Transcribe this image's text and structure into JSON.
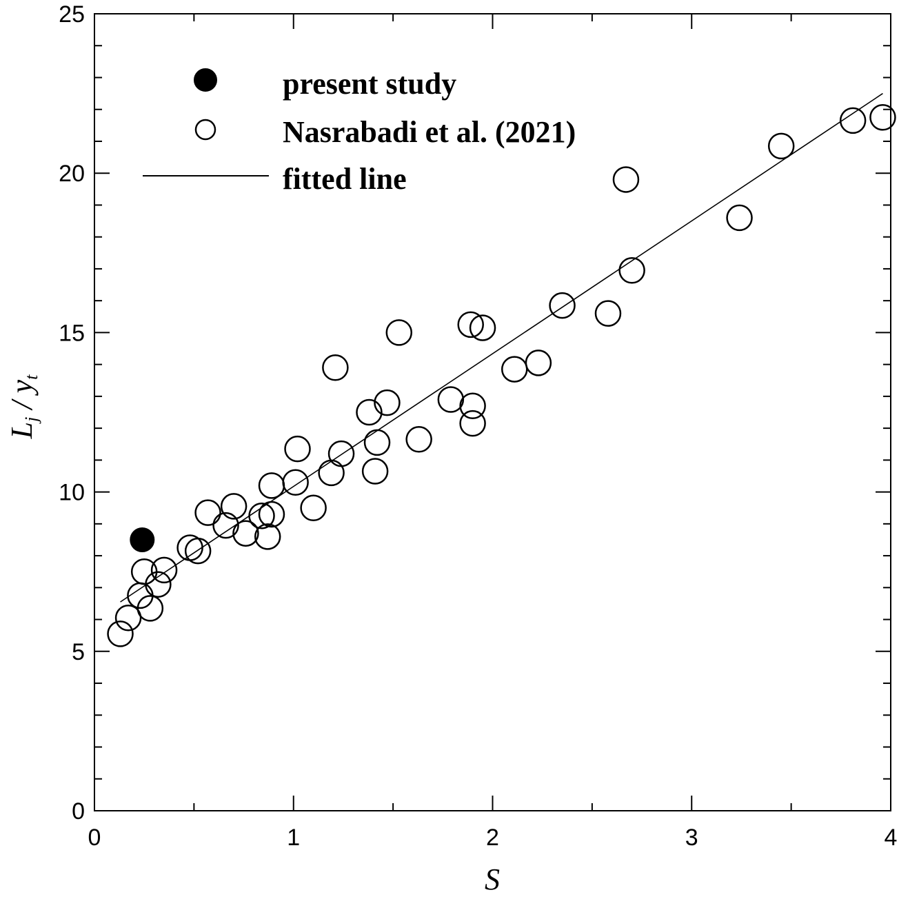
{
  "chart_data": {
    "type": "scatter",
    "xlabel": "S",
    "ylabel": {
      "main": "L",
      "main_sub": "j",
      "separator": " / ",
      "denom": "y",
      "denom_sub": "t"
    },
    "xlim": [
      0,
      4
    ],
    "ylim": [
      0,
      25
    ],
    "x_ticks": [
      "0",
      "1",
      "2",
      "3",
      "4"
    ],
    "y_ticks": [
      "0",
      "5",
      "10",
      "15",
      "20",
      "25"
    ],
    "grid": false,
    "legend_position": "top-left",
    "legend": [
      "present study",
      "Nasrabadi et al. (2021)",
      "fitted line"
    ],
    "series": [
      {
        "name": "present study",
        "marker": "filled-circle",
        "points": [
          [
            0.24,
            8.5
          ]
        ]
      },
      {
        "name": "Nasrabadi et al. (2021)",
        "marker": "open-circle",
        "points": [
          [
            0.13,
            5.55
          ],
          [
            0.17,
            6.05
          ],
          [
            0.23,
            6.75
          ],
          [
            0.25,
            7.5
          ],
          [
            0.28,
            6.35
          ],
          [
            0.32,
            7.1
          ],
          [
            0.35,
            7.55
          ],
          [
            0.48,
            8.25
          ],
          [
            0.52,
            8.15
          ],
          [
            0.57,
            9.35
          ],
          [
            0.66,
            8.95
          ],
          [
            0.7,
            9.55
          ],
          [
            0.76,
            8.7
          ],
          [
            0.84,
            9.25
          ],
          [
            0.87,
            8.6
          ],
          [
            0.89,
            9.3
          ],
          [
            0.89,
            10.2
          ],
          [
            1.01,
            10.3
          ],
          [
            1.02,
            11.35
          ],
          [
            1.1,
            9.5
          ],
          [
            1.19,
            10.6
          ],
          [
            1.21,
            13.9
          ],
          [
            1.24,
            11.2
          ],
          [
            1.38,
            12.5
          ],
          [
            1.41,
            10.65
          ],
          [
            1.42,
            11.55
          ],
          [
            1.47,
            12.8
          ],
          [
            1.53,
            15.0
          ],
          [
            1.63,
            11.65
          ],
          [
            1.79,
            12.9
          ],
          [
            1.89,
            15.25
          ],
          [
            1.9,
            12.7
          ],
          [
            1.9,
            12.15
          ],
          [
            1.95,
            15.15
          ],
          [
            2.11,
            13.85
          ],
          [
            2.23,
            14.05
          ],
          [
            2.35,
            15.85
          ],
          [
            2.58,
            15.6
          ],
          [
            2.67,
            19.8
          ],
          [
            2.7,
            16.95
          ],
          [
            3.24,
            18.6
          ],
          [
            3.45,
            20.85
          ],
          [
            3.81,
            21.65
          ],
          [
            3.96,
            21.75
          ]
        ]
      },
      {
        "name": "fitted line",
        "type": "line",
        "points": [
          [
            0.13,
            6.55
          ],
          [
            3.96,
            22.5
          ]
        ]
      }
    ]
  }
}
